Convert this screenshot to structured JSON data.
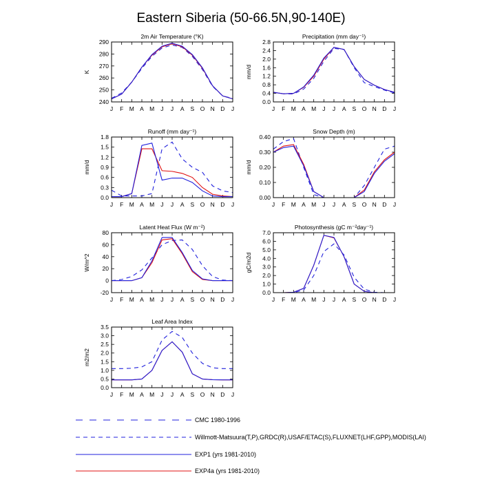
{
  "title": "Eastern Siberia (50-66.5N,90-140E)",
  "months": [
    "J",
    "F",
    "M",
    "A",
    "M",
    "J",
    "J",
    "A",
    "S",
    "O",
    "N",
    "D",
    "J"
  ],
  "colors": {
    "cmc": "#1f1fdc",
    "obs": "#1f1fdc",
    "exp1": "#1f1fdc",
    "exp4a": "#e01010"
  },
  "legend": [
    {
      "key": "cmc",
      "label": "CMC 1980-1996",
      "dash": "long"
    },
    {
      "key": "obs",
      "label": "Willmott-Matsuura(T,P),GRDC(R),USAF/ETAC(S),FLUXNET(LHF,GPP),MODIS(LAI)",
      "dash": "short"
    },
    {
      "key": "exp1",
      "label": "EXP1 (yrs 1981-2010)",
      "dash": "solid"
    },
    {
      "key": "exp4a",
      "label": "EXP4a (yrs 1981-2010)",
      "dash": "solid"
    }
  ],
  "chart_data": [
    {
      "type": "line",
      "title": "2m Air Temperature (°K)",
      "ylabel": "K",
      "ylim": [
        240,
        290
      ],
      "yticks": [
        "240",
        "250",
        "260",
        "270",
        "280",
        "290"
      ],
      "xlabels": [
        "J",
        "F",
        "M",
        "A",
        "M",
        "J",
        "J",
        "A",
        "S",
        "O",
        "N",
        "D",
        "J"
      ],
      "series": [
        {
          "key": "obs",
          "values": [
            243,
            247.5,
            256.5,
            268,
            278,
            285,
            287.5,
            285.5,
            278,
            267,
            253,
            245,
            243
          ]
        },
        {
          "key": "exp4a",
          "values": [
            242.5,
            246.5,
            256.5,
            269,
            279,
            286,
            288.5,
            286,
            279,
            268,
            253.5,
            245,
            242.5
          ]
        },
        {
          "key": "exp1",
          "values": [
            242.5,
            246.5,
            256.5,
            269,
            279.5,
            286.5,
            289,
            286.5,
            279.5,
            268.5,
            253.5,
            245,
            242.5
          ]
        }
      ]
    },
    {
      "type": "line",
      "title": "Precipitation (mm day⁻¹)",
      "ylabel": "mm/d",
      "ylim": [
        0,
        2.8
      ],
      "yticks": [
        "0.0",
        "0.4",
        "0.8",
        "1.2",
        "1.6",
        "2.0",
        "2.4",
        "2.8"
      ],
      "xlabels": [
        "J",
        "F",
        "M",
        "A",
        "M",
        "J",
        "J",
        "A",
        "S",
        "O",
        "N",
        "D",
        "J"
      ],
      "series": [
        {
          "key": "obs",
          "values": [
            0.45,
            0.38,
            0.37,
            0.6,
            1.1,
            1.9,
            2.5,
            2.45,
            1.6,
            0.9,
            0.72,
            0.55,
            0.42
          ]
        },
        {
          "key": "exp4a",
          "values": [
            0.45,
            0.38,
            0.4,
            0.68,
            1.2,
            2.0,
            2.55,
            2.45,
            1.65,
            1.05,
            0.78,
            0.58,
            0.45
          ]
        },
        {
          "key": "exp1",
          "values": [
            0.45,
            0.38,
            0.4,
            0.7,
            1.25,
            2.05,
            2.55,
            2.45,
            1.65,
            1.05,
            0.78,
            0.58,
            0.45
          ]
        }
      ]
    },
    {
      "type": "line",
      "title": "Runoff (mm day⁻¹)",
      "ylabel": "mm/d",
      "ylim": [
        0,
        1.8
      ],
      "yticks": [
        "0.0",
        "0.3",
        "0.6",
        "0.9",
        "1.2",
        "1.5",
        "1.8"
      ],
      "xlabels": [
        "J",
        "F",
        "M",
        "A",
        "M",
        "J",
        "J",
        "A",
        "S",
        "O",
        "N",
        "D",
        "J"
      ],
      "series": [
        {
          "key": "obs",
          "values": [
            0.22,
            0.05,
            0.05,
            0.05,
            0.12,
            1.45,
            1.65,
            1.15,
            0.9,
            0.75,
            0.35,
            0.2,
            0.15
          ]
        },
        {
          "key": "exp4a",
          "values": [
            0.03,
            0.03,
            0.12,
            1.45,
            1.45,
            0.8,
            0.78,
            0.72,
            0.6,
            0.3,
            0.1,
            0.05,
            0.03
          ]
        },
        {
          "key": "exp1",
          "values": [
            0.03,
            0.03,
            0.12,
            1.55,
            1.62,
            0.52,
            0.58,
            0.58,
            0.45,
            0.2,
            0.05,
            0.03,
            0.03
          ]
        }
      ]
    },
    {
      "type": "line",
      "title": "Snow Depth (m)",
      "ylabel": "mm/d",
      "ylim": [
        0,
        0.4
      ],
      "yticks": [
        "0.00",
        "0.10",
        "0.20",
        "0.30",
        "0.40"
      ],
      "xlabels": [
        "J",
        "F",
        "M",
        "A",
        "M",
        "J",
        "J",
        "A",
        "S",
        "O",
        "N",
        "D",
        "J"
      ],
      "series": [
        {
          "key": "obs",
          "values": [
            0.32,
            0.37,
            0.39,
            0.2,
            0.02,
            0.0,
            0.0,
            0.0,
            0.0,
            0.08,
            0.2,
            0.32,
            0.34
          ]
        },
        {
          "key": "exp4a",
          "values": [
            0.3,
            0.34,
            0.35,
            0.22,
            0.04,
            0.0,
            0.0,
            0.0,
            0.0,
            0.05,
            0.17,
            0.25,
            0.3
          ]
        },
        {
          "key": "exp1",
          "values": [
            0.3,
            0.33,
            0.34,
            0.21,
            0.04,
            0.0,
            0.0,
            0.0,
            0.0,
            0.04,
            0.16,
            0.24,
            0.29
          ]
        }
      ]
    },
    {
      "type": "line",
      "title": "Latent Heat Flux (W m⁻²)",
      "ylabel": "W/m^2",
      "ylim": [
        -20,
        80
      ],
      "yticks": [
        "-20",
        "0",
        "20",
        "40",
        "60",
        "80"
      ],
      "xlabels": [
        "J",
        "F",
        "M",
        "A",
        "M",
        "J",
        "J",
        "A",
        "S",
        "O",
        "N",
        "D",
        "J"
      ],
      "series": [
        {
          "key": "obs",
          "values": [
            0,
            2,
            7,
            18,
            38,
            60,
            67,
            68,
            52,
            25,
            7,
            1,
            0
          ]
        },
        {
          "key": "exp4a",
          "values": [
            0,
            0,
            0,
            5,
            30,
            68,
            70,
            45,
            15,
            2,
            0,
            0,
            0
          ]
        },
        {
          "key": "exp1",
          "values": [
            0,
            0,
            0,
            5,
            33,
            72,
            72,
            47,
            17,
            3,
            0,
            0,
            0
          ]
        }
      ]
    },
    {
      "type": "line",
      "title": "Photosynthesis (gC m⁻²day⁻¹)",
      "ylabel": "gC/m2d",
      "ylim": [
        0,
        7
      ],
      "yticks": [
        "0.0",
        "1.0",
        "2.0",
        "3.0",
        "4.0",
        "5.0",
        "6.0",
        "7.0"
      ],
      "xlabels": [
        "J",
        "F",
        "M",
        "A",
        "M",
        "J",
        "J",
        "A",
        "S",
        "O",
        "N",
        "D",
        "J"
      ],
      "series": [
        {
          "key": "obs",
          "values": [
            0,
            0,
            0,
            0.3,
            2.0,
            4.8,
            5.7,
            4.4,
            1.8,
            0.4,
            0.05,
            0,
            0
          ]
        },
        {
          "key": "exp4a",
          "values": [
            0,
            0,
            0.05,
            0.5,
            3.2,
            6.7,
            6.4,
            4.2,
            1.0,
            0.15,
            0,
            0,
            0
          ]
        },
        {
          "key": "exp1",
          "values": [
            0,
            0,
            0.05,
            0.5,
            3.2,
            6.7,
            6.45,
            4.2,
            1.0,
            0.15,
            0,
            0,
            0
          ]
        }
      ]
    },
    {
      "type": "line",
      "title": "Leaf Area Index",
      "ylabel": "m2/m2",
      "ylim": [
        0,
        3.5
      ],
      "yticks": [
        "0.0",
        "0.5",
        "1.0",
        "1.5",
        "2.0",
        "2.5",
        "3.0",
        "3.5"
      ],
      "xlabels": [
        "J",
        "F",
        "M",
        "A",
        "M",
        "J",
        "J",
        "A",
        "S",
        "O",
        "N",
        "D",
        "J"
      ],
      "series": [
        {
          "key": "obs",
          "values": [
            1.1,
            1.1,
            1.12,
            1.2,
            1.5,
            2.75,
            3.25,
            2.9,
            2.0,
            1.4,
            1.15,
            1.1,
            1.1
          ]
        },
        {
          "key": "exp4a",
          "values": [
            0.45,
            0.45,
            0.45,
            0.5,
            1.0,
            2.15,
            2.65,
            2.05,
            0.8,
            0.5,
            0.46,
            0.45,
            0.45
          ]
        },
        {
          "key": "exp1",
          "values": [
            0.45,
            0.45,
            0.45,
            0.5,
            1.0,
            2.15,
            2.65,
            2.05,
            0.8,
            0.5,
            0.46,
            0.45,
            0.45
          ]
        }
      ]
    }
  ]
}
